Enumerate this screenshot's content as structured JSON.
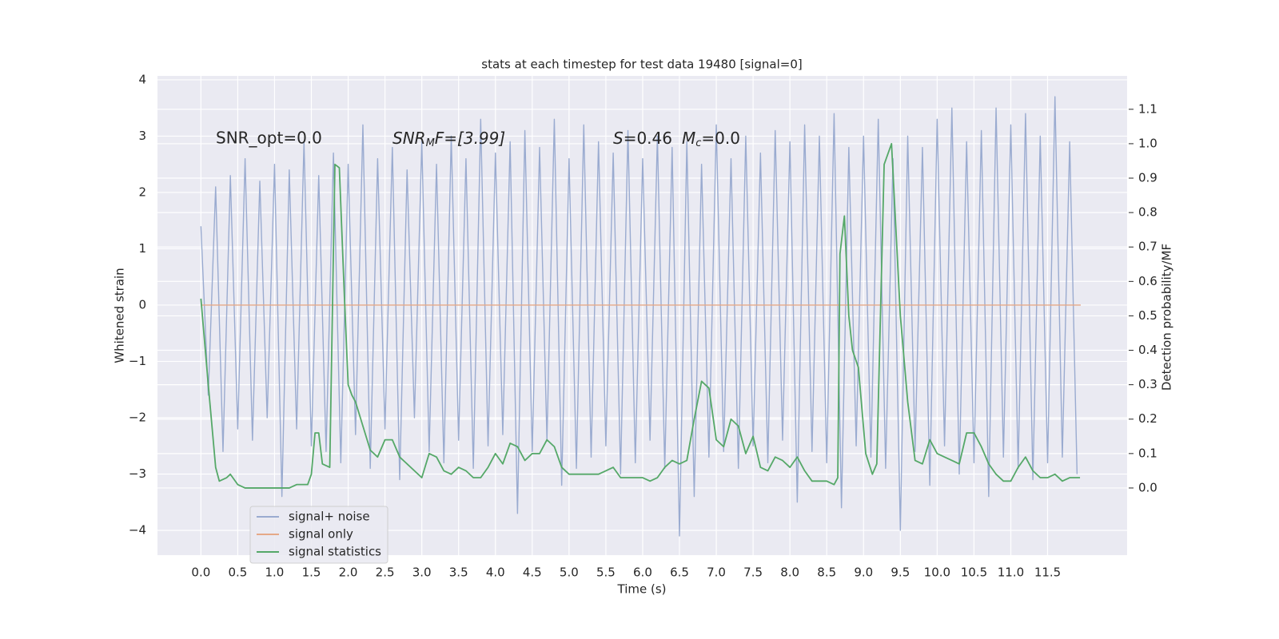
{
  "chart_data": {
    "type": "line",
    "title": "stats at each timestep for test data 19480 [signal=0]",
    "xlabel": "Time (s)",
    "ylabel": "Whitened strain",
    "y2label": "Detection probability/MF",
    "annotations": [
      {
        "text": "SNR_opt=0.0"
      },
      {
        "main": "SNR",
        "sub": "M",
        "rest": "F=[3.99]"
      },
      {
        "main": "S",
        "rest": "=0.46",
        "main2": "M",
        "sub": "c",
        "rest2": "=0.0"
      }
    ],
    "xlim": [
      -0.59,
      12.58
    ],
    "ylim": [
      -4.44,
      4.07
    ],
    "y2lim": [
      -0.195,
      1.197
    ],
    "xticks": [
      {
        "value": 0,
        "label": "0.0"
      },
      0.5,
      {
        "value": 1,
        "label": "1.0"
      },
      1.5,
      {
        "value": 2,
        "label": "2.0"
      },
      2.5,
      {
        "value": 3,
        "label": "3.0"
      },
      3.5,
      {
        "value": 4,
        "label": "4.0"
      },
      4.5,
      {
        "value": 5,
        "label": "5.0"
      },
      5.5,
      {
        "value": 6,
        "label": "6.0"
      },
      6.5,
      {
        "value": 7,
        "label": "7.0"
      },
      7.5,
      {
        "value": 8,
        "label": "8.0"
      },
      8.5,
      {
        "value": 9,
        "label": "9.0"
      },
      9.5,
      {
        "value": 10,
        "label": "10.0"
      },
      10.5,
      {
        "value": 11,
        "label": "11.0"
      },
      11.5
    ],
    "yticks": [
      {
        "value": -4,
        "label": "−4"
      },
      {
        "value": -3,
        "label": "−3"
      },
      {
        "value": -2,
        "label": "−2"
      },
      {
        "value": -1,
        "label": "−1"
      },
      0,
      1,
      2,
      3,
      4
    ],
    "y2ticks": [
      {
        "value": 0,
        "label": "0.0"
      },
      0.1,
      0.2,
      0.3,
      0.4,
      0.5,
      0.6,
      0.7,
      0.8,
      0.9,
      {
        "value": 1,
        "label": "1.0"
      },
      1.1
    ],
    "grid": true,
    "legend": "lower left",
    "series": [
      {
        "name": "signal+ noise",
        "color": "#9aabd0",
        "axis": "y",
        "x": [
          0,
          0.1,
          0.2,
          0.3,
          0.4,
          0.5,
          0.6,
          0.7,
          0.8,
          0.9,
          1,
          1.1,
          1.2,
          1.3,
          1.4,
          1.5,
          1.6,
          1.7,
          1.8,
          1.9,
          2,
          2.1,
          2.2,
          2.3,
          2.4,
          2.5,
          2.6,
          2.7,
          2.8,
          2.9,
          3,
          3.1,
          3.2,
          3.3,
          3.4,
          3.5,
          3.6,
          3.7,
          3.8,
          3.9,
          4,
          4.1,
          4.2,
          4.3,
          4.4,
          4.5,
          4.6,
          4.7,
          4.8,
          4.9,
          5,
          5.1,
          5.2,
          5.3,
          5.4,
          5.5,
          5.6,
          5.7,
          5.8,
          5.9,
          6,
          6.1,
          6.2,
          6.3,
          6.4,
          6.5,
          6.6,
          6.7,
          6.8,
          6.9,
          7,
          7.1,
          7.2,
          7.3,
          7.4,
          7.5,
          7.6,
          7.7,
          7.8,
          7.9,
          8,
          8.1,
          8.2,
          8.3,
          8.4,
          8.5,
          8.6,
          8.7,
          8.8,
          8.9,
          9,
          9.1,
          9.2,
          9.3,
          9.4,
          9.5,
          9.6,
          9.7,
          9.8,
          9.9,
          10,
          10.1,
          10.2,
          10.3,
          10.4,
          10.5,
          10.6,
          10.7,
          10.8,
          10.9,
          11,
          11.1,
          11.2,
          11.3,
          11.4,
          11.5,
          11.6,
          11.7,
          11.8,
          11.9
        ],
        "values": [
          1.4,
          -1.6,
          2.1,
          -2.6,
          2.3,
          -2.2,
          2.6,
          -2.4,
          2.2,
          -2.0,
          2.5,
          -3.4,
          2.4,
          -2.2,
          2.9,
          -2.5,
          2.3,
          -2.6,
          2.7,
          -2.8,
          2.5,
          -2.3,
          3.2,
          -2.9,
          2.6,
          -2.2,
          2.8,
          -3.1,
          2.4,
          -2.0,
          2.9,
          -2.6,
          2.5,
          -2.8,
          3.0,
          -2.4,
          2.6,
          -2.9,
          3.3,
          -2.5,
          2.7,
          -2.3,
          2.9,
          -3.7,
          3.1,
          -2.6,
          2.8,
          -2.4,
          3.3,
          -3.2,
          2.6,
          -2.9,
          3.2,
          -2.7,
          2.9,
          -2.5,
          2.7,
          -3.0,
          3.1,
          -2.8,
          2.6,
          -2.4,
          3.0,
          -2.9,
          2.8,
          -4.1,
          2.9,
          -3.4,
          2.5,
          -2.7,
          3.2,
          -2.6,
          2.6,
          -2.9,
          3.0,
          -2.5,
          2.7,
          -2.8,
          3.1,
          -2.4,
          2.9,
          -3.5,
          3.2,
          -2.6,
          3.0,
          -2.8,
          3.4,
          -3.6,
          2.8,
          -2.5,
          3.0,
          -2.7,
          3.3,
          -2.9,
          2.6,
          -4.0,
          3.0,
          -2.6,
          2.8,
          -3.2,
          3.3,
          -2.5,
          3.5,
          -3.0,
          2.9,
          -2.8,
          3.1,
          -3.4,
          3.5,
          -2.7,
          3.2,
          -2.9,
          3.4,
          -3.1,
          3.0,
          -2.8,
          3.7,
          -2.7,
          2.9,
          -3.0
        ]
      },
      {
        "name": "signal only",
        "color": "#e5a987",
        "axis": "y",
        "x": [
          0,
          11.95
        ],
        "values": [
          0,
          0
        ]
      },
      {
        "name": "signal statistics",
        "color": "#55a868",
        "axis": "y2",
        "x": [
          0,
          0.1,
          0.2,
          0.25,
          0.35,
          0.4,
          0.5,
          0.6,
          0.8,
          1.0,
          1.2,
          1.3,
          1.45,
          1.5,
          1.55,
          1.6,
          1.65,
          1.75,
          1.82,
          1.88,
          1.95,
          2.0,
          2.05,
          2.1,
          2.2,
          2.3,
          2.4,
          2.5,
          2.6,
          2.7,
          2.9,
          3.0,
          3.1,
          3.2,
          3.3,
          3.4,
          3.5,
          3.6,
          3.7,
          3.8,
          3.9,
          4.0,
          4.1,
          4.2,
          4.3,
          4.4,
          4.5,
          4.6,
          4.7,
          4.8,
          4.9,
          5.0,
          5.2,
          5.4,
          5.5,
          5.6,
          5.7,
          5.9,
          6.0,
          6.1,
          6.2,
          6.3,
          6.4,
          6.5,
          6.6,
          6.7,
          6.8,
          6.9,
          7.0,
          7.1,
          7.2,
          7.3,
          7.4,
          7.5,
          7.6,
          7.7,
          7.8,
          7.9,
          8.0,
          8.1,
          8.2,
          8.3,
          8.5,
          8.6,
          8.65,
          8.68,
          8.74,
          8.8,
          8.85,
          8.93,
          9.03,
          9.12,
          9.18,
          9.28,
          9.38,
          9.5,
          9.6,
          9.7,
          9.8,
          9.9,
          10.0,
          10.1,
          10.2,
          10.3,
          10.4,
          10.5,
          10.6,
          10.7,
          10.8,
          10.9,
          11.0,
          11.1,
          11.2,
          11.3,
          11.4,
          11.5,
          11.6,
          11.7,
          11.8,
          11.9,
          11.94
        ],
        "values": [
          0.55,
          0.3,
          0.06,
          0.02,
          0.03,
          0.04,
          0.01,
          0.0,
          0.0,
          0.0,
          0.0,
          0.01,
          0.01,
          0.04,
          0.16,
          0.16,
          0.07,
          0.06,
          0.94,
          0.93,
          0.55,
          0.3,
          0.27,
          0.25,
          0.18,
          0.11,
          0.09,
          0.14,
          0.14,
          0.09,
          0.05,
          0.03,
          0.1,
          0.09,
          0.05,
          0.04,
          0.06,
          0.05,
          0.03,
          0.03,
          0.06,
          0.1,
          0.07,
          0.13,
          0.12,
          0.08,
          0.1,
          0.1,
          0.14,
          0.12,
          0.06,
          0.04,
          0.04,
          0.04,
          0.05,
          0.06,
          0.03,
          0.03,
          0.03,
          0.02,
          0.03,
          0.06,
          0.08,
          0.07,
          0.08,
          0.2,
          0.31,
          0.29,
          0.14,
          0.12,
          0.2,
          0.18,
          0.1,
          0.15,
          0.06,
          0.05,
          0.09,
          0.08,
          0.06,
          0.09,
          0.05,
          0.02,
          0.02,
          0.01,
          0.03,
          0.68,
          0.79,
          0.5,
          0.4,
          0.35,
          0.1,
          0.04,
          0.07,
          0.94,
          1.0,
          0.5,
          0.25,
          0.08,
          0.07,
          0.14,
          0.1,
          0.09,
          0.08,
          0.07,
          0.16,
          0.16,
          0.12,
          0.07,
          0.04,
          0.02,
          0.02,
          0.06,
          0.09,
          0.05,
          0.03,
          0.03,
          0.04,
          0.02,
          0.03,
          0.03,
          0.03
        ]
      }
    ]
  }
}
